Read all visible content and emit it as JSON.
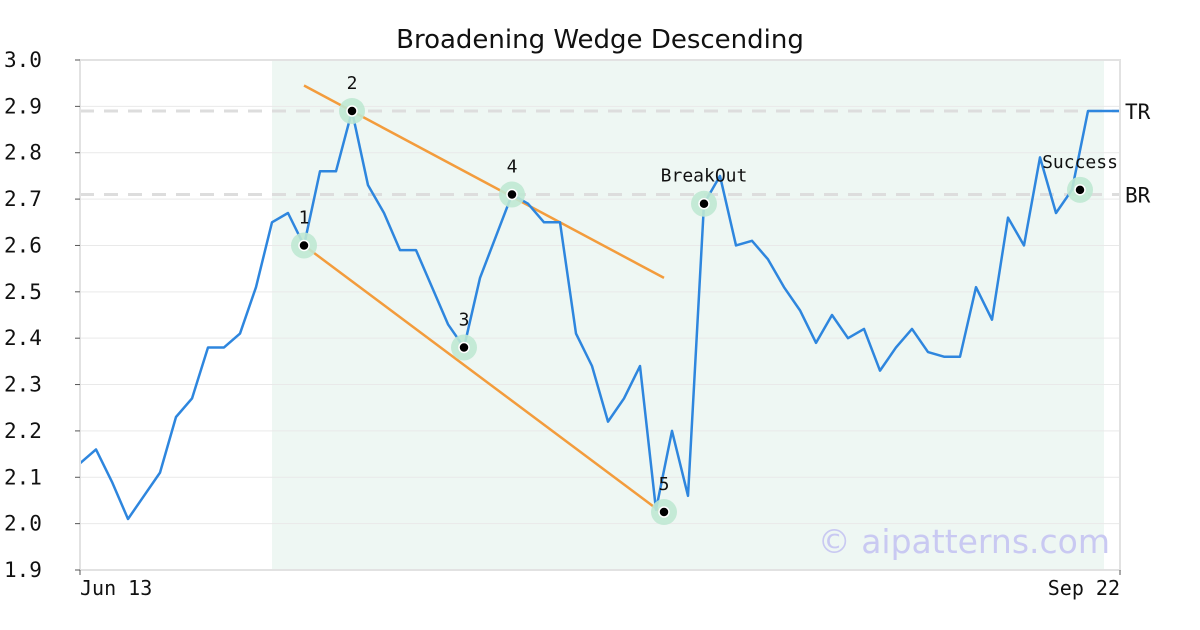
{
  "chart_data": {
    "type": "line",
    "title": "Broadening Wedge Descending",
    "xlabel": "",
    "ylabel": "",
    "ylim": [
      1.9,
      3.0
    ],
    "yticks": [
      "1.9",
      "2.0",
      "2.1",
      "2.2",
      "2.3",
      "2.4",
      "2.5",
      "2.6",
      "2.7",
      "2.8",
      "2.9",
      "3.0"
    ],
    "xlim": [
      0,
      65
    ],
    "xticks": [
      {
        "x": 0,
        "label": "Jun 13"
      },
      {
        "x": 65,
        "label": "Sep 22"
      }
    ],
    "grid": true,
    "series": [
      {
        "color": "#2e86de",
        "x": [
          0,
          1,
          2,
          3,
          4,
          5,
          6,
          7,
          8,
          9,
          10,
          11,
          12,
          13,
          14,
          15,
          16,
          17,
          18,
          19,
          20,
          21,
          22,
          23,
          24,
          25,
          26,
          27,
          28,
          29,
          30,
          31,
          32,
          33,
          34,
          35,
          36,
          37,
          38,
          39,
          40,
          41,
          42,
          43,
          44,
          45,
          46,
          47,
          48,
          49,
          50,
          51,
          52,
          53,
          54,
          55,
          56,
          57,
          58,
          59,
          60,
          61,
          62,
          63,
          64,
          65
        ],
        "y": [
          2.13,
          2.16,
          2.09,
          2.01,
          2.06,
          2.11,
          2.23,
          2.27,
          2.38,
          2.38,
          2.41,
          2.51,
          2.65,
          2.67,
          2.6,
          2.76,
          2.76,
          2.89,
          2.73,
          2.67,
          2.59,
          2.59,
          2.51,
          2.43,
          2.38,
          2.53,
          2.62,
          2.71,
          2.69,
          2.65,
          2.65,
          2.41,
          2.34,
          2.22,
          2.27,
          2.34,
          2.03,
          2.2,
          2.06,
          2.69,
          2.75,
          2.6,
          2.61,
          2.57,
          2.51,
          2.46,
          2.39,
          2.45,
          2.4,
          2.42,
          2.33,
          2.38,
          2.42,
          2.37,
          2.36,
          2.36,
          2.51,
          2.44,
          2.66,
          2.6,
          2.79,
          2.67,
          2.72,
          2.89,
          2.89,
          2.89
        ]
      }
    ],
    "pattern_region": {
      "x_start": 12,
      "x_end": 64,
      "color": "#eef7f3"
    },
    "trendlines": [
      {
        "color": "#f39c3c",
        "x": [
          14,
          36.5
        ],
        "y": [
          2.945,
          2.53
        ]
      },
      {
        "color": "#f39c3c",
        "x": [
          14,
          36.5
        ],
        "y": [
          2.6,
          2.02
        ]
      }
    ],
    "levels": [
      {
        "label": "TR",
        "y": 2.89,
        "color": "#dddddd"
      },
      {
        "label": "BR",
        "y": 2.71,
        "color": "#dddddd"
      }
    ],
    "pattern_points": [
      {
        "label": "1",
        "x": 14,
        "y": 2.6
      },
      {
        "label": "2",
        "x": 17,
        "y": 2.89
      },
      {
        "label": "3",
        "x": 24,
        "y": 2.38
      },
      {
        "label": "4",
        "x": 27,
        "y": 2.71
      },
      {
        "label": "5",
        "x": 36.5,
        "y": 2.025
      },
      {
        "label": "BreakOut",
        "x": 39,
        "y": 2.69
      },
      {
        "label": "Success",
        "x": 62.5,
        "y": 2.72
      }
    ],
    "marker_halo_color": "#bfe8d3"
  },
  "watermark": "© aipatterns.com"
}
